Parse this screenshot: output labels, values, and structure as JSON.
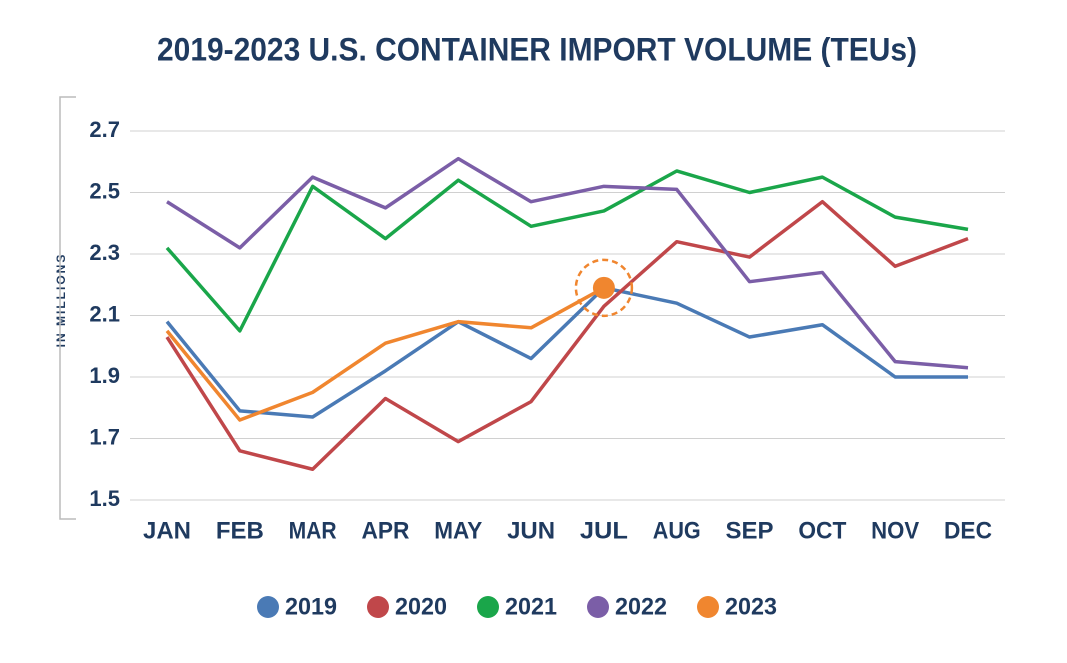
{
  "chart_data": {
    "type": "line",
    "title": "2019-2023 U.S. CONTAINER IMPORT VOLUME (TEUs)",
    "y_label": "IN MILLIONS",
    "categories": [
      "JAN",
      "FEB",
      "MAR",
      "APR",
      "MAY",
      "JUN",
      "JUL",
      "AUG",
      "SEP",
      "OCT",
      "NOV",
      "DEC"
    ],
    "series": [
      {
        "name": "2019",
        "color": "#4a7ab5",
        "values": [
          2.08,
          1.79,
          1.77,
          1.92,
          2.08,
          1.96,
          2.19,
          2.14,
          2.03,
          2.07,
          1.9,
          1.9
        ]
      },
      {
        "name": "2020",
        "color": "#c0474a",
        "values": [
          2.03,
          1.66,
          1.6,
          1.83,
          1.69,
          1.82,
          2.13,
          2.34,
          2.29,
          2.47,
          2.26,
          2.35
        ]
      },
      {
        "name": "2021",
        "color": "#1aa64a",
        "values": [
          2.32,
          2.05,
          2.52,
          2.35,
          2.54,
          2.39,
          2.44,
          2.57,
          2.5,
          2.55,
          2.42,
          2.38
        ]
      },
      {
        "name": "2022",
        "color": "#7b5ea7",
        "values": [
          2.47,
          2.32,
          2.55,
          2.45,
          2.61,
          2.47,
          2.52,
          2.51,
          2.21,
          2.24,
          1.95,
          1.93
        ]
      },
      {
        "name": "2023",
        "color": "#f0862f",
        "values": [
          2.05,
          1.76,
          1.85,
          2.01,
          2.08,
          2.06,
          2.19,
          null,
          null,
          null,
          null,
          null
        ]
      }
    ],
    "ylim": [
      1.5,
      2.7
    ],
    "yticks": [
      {
        "value": 1.5,
        "label": "1.5"
      },
      {
        "value": 1.7,
        "label": "1.7"
      },
      {
        "value": 1.9,
        "label": "1.9"
      },
      {
        "value": 2.1,
        "label": "2.1"
      },
      {
        "value": 2.3,
        "label": "2.3"
      },
      {
        "value": 2.5,
        "label": "2.5"
      },
      {
        "value": 2.7,
        "label": "2.7"
      }
    ],
    "grid": true
  }
}
